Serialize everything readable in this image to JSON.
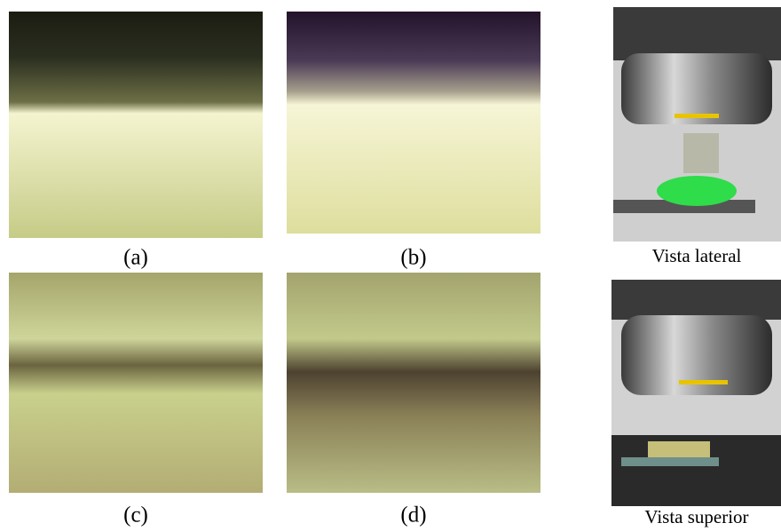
{
  "panels": [
    {
      "label": "(a)"
    },
    {
      "label": "(b)"
    },
    {
      "label": "(c)"
    },
    {
      "label": "(d)"
    }
  ],
  "views": [
    {
      "label": "Vista lateral"
    },
    {
      "label": "Vista superior"
    }
  ]
}
